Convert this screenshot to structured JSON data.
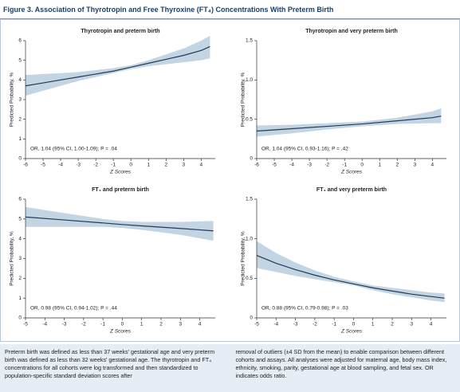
{
  "figure_title": "Figure 3. Association of Thyrotropin and Free Thyroxine (FT₄) Concentrations With Preterm Birth",
  "caption": [
    "Preterm birth was defined as less than 37 weeks' gestational age and very preterm birth was defined as less than 32 weeks' gestational age. The thyrotropin and FT₄ concentrations for all cohorts were log transformed and then standardized to population-specific standard deviation scores after",
    "removal of outliers (±4 SD from the mean) to enable comparison between different cohorts and assays. All analyses were adjusted for maternal age, body mass index, ethnicity, smoking, parity, gestational age at blood sampling, and fetal sex. OR indicates odds ratio."
  ],
  "chart_data": [
    {
      "type": "line",
      "title": "Thyrotropin and preterm birth",
      "x_label": "Z Scores",
      "y_label": "Predicted Probability, %",
      "annotation": "OR, 1.04 (95% CI, 1.00-1.09); P = .04",
      "color": "#1f3b57",
      "band_color": "#c3d4e2",
      "x": [
        -6,
        -5,
        -4,
        -3,
        -2,
        -1,
        0,
        1,
        2,
        3,
        4,
        4.5
      ],
      "values": [
        3.7,
        3.85,
        4.0,
        4.15,
        4.3,
        4.45,
        4.65,
        4.85,
        5.05,
        5.25,
        5.5,
        5.7
      ],
      "lower": [
        3.2,
        3.45,
        3.7,
        3.95,
        4.15,
        4.35,
        4.55,
        4.7,
        4.8,
        4.9,
        5.0,
        5.1
      ],
      "upper": [
        4.25,
        4.3,
        4.35,
        4.4,
        4.5,
        4.6,
        4.75,
        5.0,
        5.3,
        5.6,
        6.0,
        6.25
      ],
      "xlim": [
        -6,
        4.8
      ],
      "ylim": [
        0,
        6
      ],
      "xticks": [
        -6,
        -5,
        -4,
        -3,
        -2,
        -1,
        0,
        1,
        2,
        3,
        4
      ],
      "yticks": [
        0,
        1,
        2,
        3,
        4,
        5,
        6
      ]
    },
    {
      "type": "line",
      "title": "Thyrotropin and very preterm birth",
      "x_label": "Z Scores",
      "y_label": "Predicted Probability, %",
      "annotation": "OR, 1.04 (95% CI, 0.93-1.16); P = .42",
      "color": "#1f3b57",
      "band_color": "#c3d4e2",
      "x": [
        -6,
        -4,
        -2,
        0,
        2,
        4,
        4.5
      ],
      "values": [
        0.35,
        0.38,
        0.41,
        0.44,
        0.48,
        0.52,
        0.54
      ],
      "lower": [
        0.28,
        0.32,
        0.37,
        0.41,
        0.44,
        0.45,
        0.45
      ],
      "upper": [
        0.42,
        0.43,
        0.45,
        0.47,
        0.52,
        0.6,
        0.64
      ],
      "xlim": [
        -6,
        4.8
      ],
      "ylim": [
        0,
        1.5
      ],
      "xticks": [
        -6,
        -5,
        -4,
        -3,
        -2,
        -1,
        0,
        1,
        2,
        3,
        4
      ],
      "yticks": [
        0,
        0.5,
        {
          "value": 1,
          "label": "1.0"
        },
        1.5
      ]
    },
    {
      "type": "line",
      "title": "FT₄ and preterm birth",
      "x_label": "Z Scores",
      "y_label": "Predicted Probability, %",
      "annotation": "OR, 0.98 (95% CI, 0.94-1.02); P = .44",
      "color": "#1f3b57",
      "band_color": "#c3d4e2",
      "x": [
        -5,
        -3,
        -1,
        0,
        1,
        3,
        4.7
      ],
      "values": [
        5.1,
        4.95,
        4.8,
        4.72,
        4.65,
        4.52,
        4.4
      ],
      "lower": [
        4.6,
        4.6,
        4.6,
        4.55,
        4.45,
        4.2,
        3.9
      ],
      "upper": [
        5.6,
        5.3,
        5.0,
        4.9,
        4.85,
        4.85,
        4.9
      ],
      "xlim": [
        -5,
        4.8
      ],
      "ylim": [
        0,
        6
      ],
      "xticks": [
        -5,
        -4,
        -3,
        -2,
        -1,
        0,
        1,
        2,
        3,
        4
      ],
      "yticks": [
        0,
        1,
        2,
        3,
        4,
        5,
        6
      ]
    },
    {
      "type": "line",
      "title": "FT₄ and very preterm birth",
      "x_label": "Z Scores",
      "y_label": "Predicted Probability, %",
      "annotation": "OR, 0.88 (95% CI, 0.79-0.98); P = .03",
      "color": "#1f3b57",
      "band_color": "#c3d4e2",
      "x": [
        -5,
        -4,
        -3,
        -2,
        -1,
        0,
        1,
        2,
        3,
        4,
        4.7
      ],
      "values": [
        0.79,
        0.69,
        0.61,
        0.54,
        0.48,
        0.43,
        0.38,
        0.34,
        0.3,
        0.27,
        0.25
      ],
      "lower": [
        0.63,
        0.58,
        0.53,
        0.49,
        0.45,
        0.41,
        0.35,
        0.3,
        0.26,
        0.22,
        0.2
      ],
      "upper": [
        0.97,
        0.82,
        0.7,
        0.6,
        0.52,
        0.46,
        0.41,
        0.38,
        0.35,
        0.32,
        0.31
      ],
      "xlim": [
        -5,
        4.8
      ],
      "ylim": [
        0,
        1.5
      ],
      "xticks": [
        -5,
        -4,
        -3,
        -2,
        -1,
        0,
        1,
        2,
        3,
        4
      ],
      "yticks": [
        0,
        0.5,
        {
          "value": 1,
          "label": "1.0"
        },
        1.5
      ]
    }
  ]
}
